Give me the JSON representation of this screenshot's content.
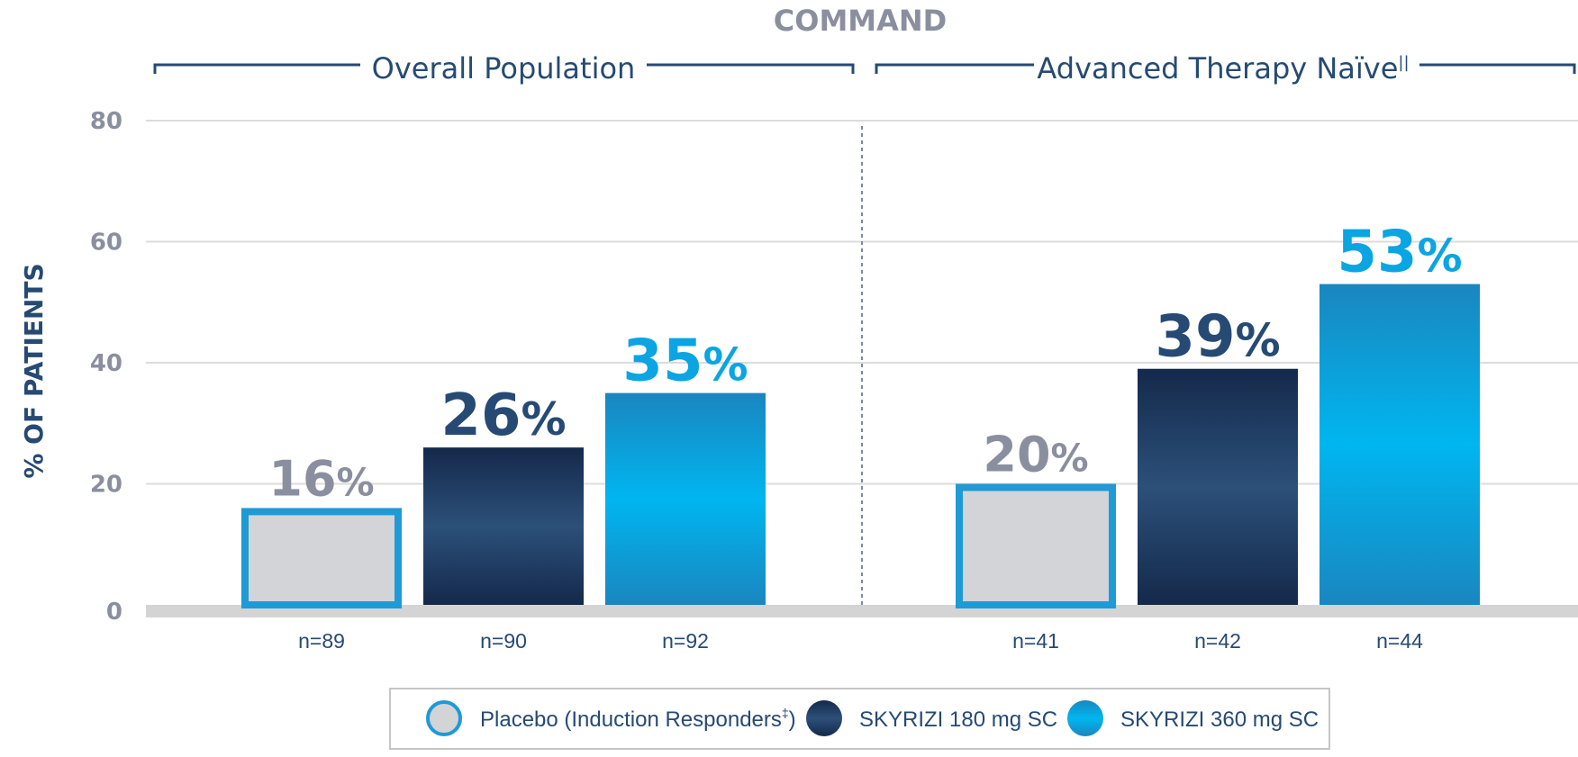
{
  "chart_data": {
    "type": "bar",
    "title": "COMMAND",
    "ylabel": "% OF PATIENTS",
    "ylim": [
      0,
      80
    ],
    "yticks": [
      "0",
      "20",
      "40",
      "60",
      "80"
    ],
    "grid": true,
    "groups": [
      {
        "label": "Overall Population",
        "n": [
          "n=89",
          "n=90",
          "n=92"
        ]
      },
      {
        "label": "Advanced Therapy Naïve",
        "superscript": "||",
        "n": [
          "n=41",
          "n=42",
          "n=44"
        ]
      }
    ],
    "series": [
      {
        "name": "Placebo (Induction Responders",
        "superscript": "‡",
        "suffix": ")",
        "values": [
          16,
          20
        ],
        "labels": [
          "16",
          "20"
        ]
      },
      {
        "name": "SKYRIZI 180 mg SC",
        "values": [
          26,
          39
        ],
        "labels": [
          "26",
          "39"
        ]
      },
      {
        "name": "SKYRIZI 360 mg SC",
        "values": [
          35,
          53
        ],
        "labels": [
          "35",
          "53"
        ]
      }
    ],
    "value_suffix": "%",
    "legend_position": "bottom"
  },
  "colors": {
    "placebo_fill": "#d3d4d7",
    "placebo_border": "#1e9ad6",
    "dose180_dark": "#14294b",
    "dose180_mid": "#2c5079",
    "dose360_dark": "#1a86bf",
    "dose360_mid": "#00b6f0",
    "label_placebo": "#8a8fa0",
    "label_180": "#264a73",
    "label_360": "#0aa5e2",
    "axis_band": "#d4d4d4",
    "grid": "#dcdcdc",
    "bracket": "#264a73"
  }
}
